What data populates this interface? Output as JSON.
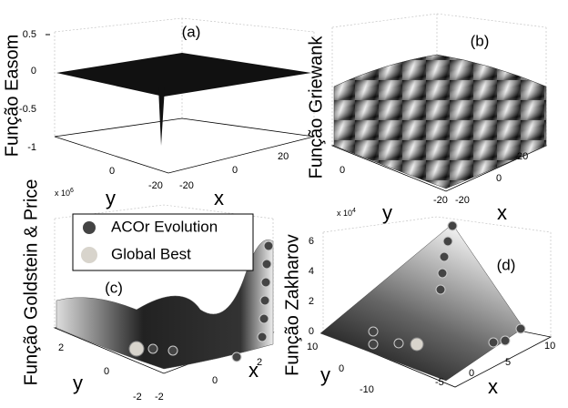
{
  "figure": {
    "panels": [
      {
        "label": "(a)",
        "z_label": "Função Easom",
        "z_ticks": [
          "0.5",
          "0",
          "-0.5",
          "-1"
        ],
        "x_ticks": [
          "20",
          "0",
          "-20"
        ],
        "y_ticks": [
          "0",
          "-20"
        ],
        "x_label": "x",
        "y_label": "y"
      },
      {
        "label": "(b)",
        "z_label": "Função Griewank",
        "x_ticks": [
          "20",
          "0",
          "-20"
        ],
        "y_ticks": [
          "0",
          "-20"
        ],
        "x_label": "x",
        "y_label": "y"
      },
      {
        "label": "(c)",
        "z_label": "Função Goldstein & Price",
        "exponent_base": "x 10",
        "exponent_power": "6",
        "x_ticks": [
          "2",
          "0",
          "-2"
        ],
        "y_ticks": [
          "2",
          "0",
          "-2"
        ],
        "x_label": "x",
        "y_label": "y",
        "legend": [
          "ACOr Evolution",
          "Global Best"
        ]
      },
      {
        "label": "(d)",
        "z_label": "Função Zakharov",
        "exponent_base": "x 10",
        "exponent_power": "4",
        "z_ticks": [
          "6",
          "4",
          "2",
          "0"
        ],
        "x_ticks": [
          "10",
          "5",
          "0",
          "-5"
        ],
        "y_ticks": [
          "10",
          "0",
          "-10"
        ],
        "x_label": "x",
        "y_label": "y"
      }
    ]
  }
}
